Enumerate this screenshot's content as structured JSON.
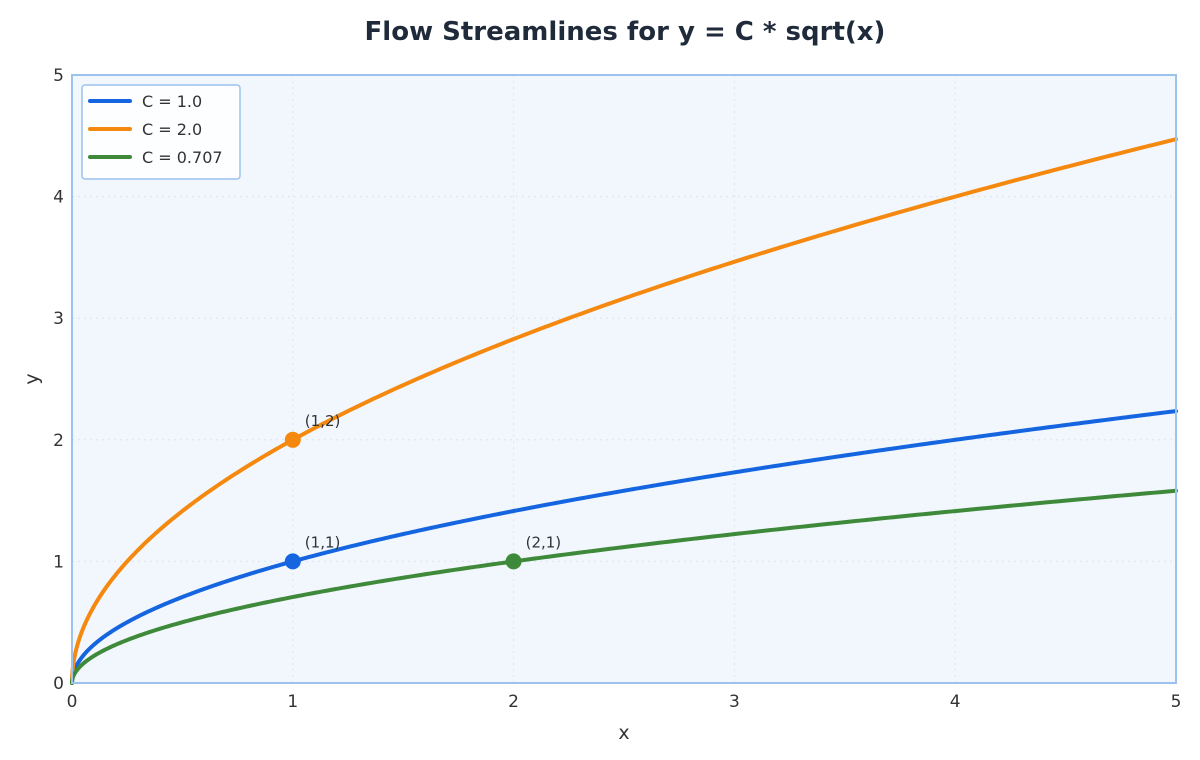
{
  "chart_data": {
    "type": "line",
    "title": "Flow Streamlines for y = C * sqrt(x)",
    "xlabel": "x",
    "ylabel": "y",
    "xlim": [
      0,
      5
    ],
    "ylim": [
      0,
      5
    ],
    "xticks": [
      0,
      1,
      2,
      3,
      4,
      5
    ],
    "yticks": [
      0,
      1,
      2,
      3,
      4,
      5
    ],
    "grid": true,
    "legend_position": "top-left",
    "series": [
      {
        "name": "C = 1.0",
        "C": 1.0,
        "color": "#1565e0"
      },
      {
        "name": "C = 2.0",
        "C": 2.0,
        "color": "#f5890f"
      },
      {
        "name": "C = 0.707",
        "C": 0.707,
        "color": "#3f8a3a"
      }
    ],
    "points": [
      {
        "x": 1,
        "y": 2,
        "label": "(1,2)",
        "color": "#f5890f"
      },
      {
        "x": 1,
        "y": 1,
        "label": "(1,1)",
        "color": "#1565e0"
      },
      {
        "x": 2,
        "y": 1,
        "label": "(2,1)",
        "color": "#3f8a3a"
      }
    ],
    "colors": {
      "plot_background": "#f1f7fd",
      "frame": "#9cc2ee"
    }
  }
}
